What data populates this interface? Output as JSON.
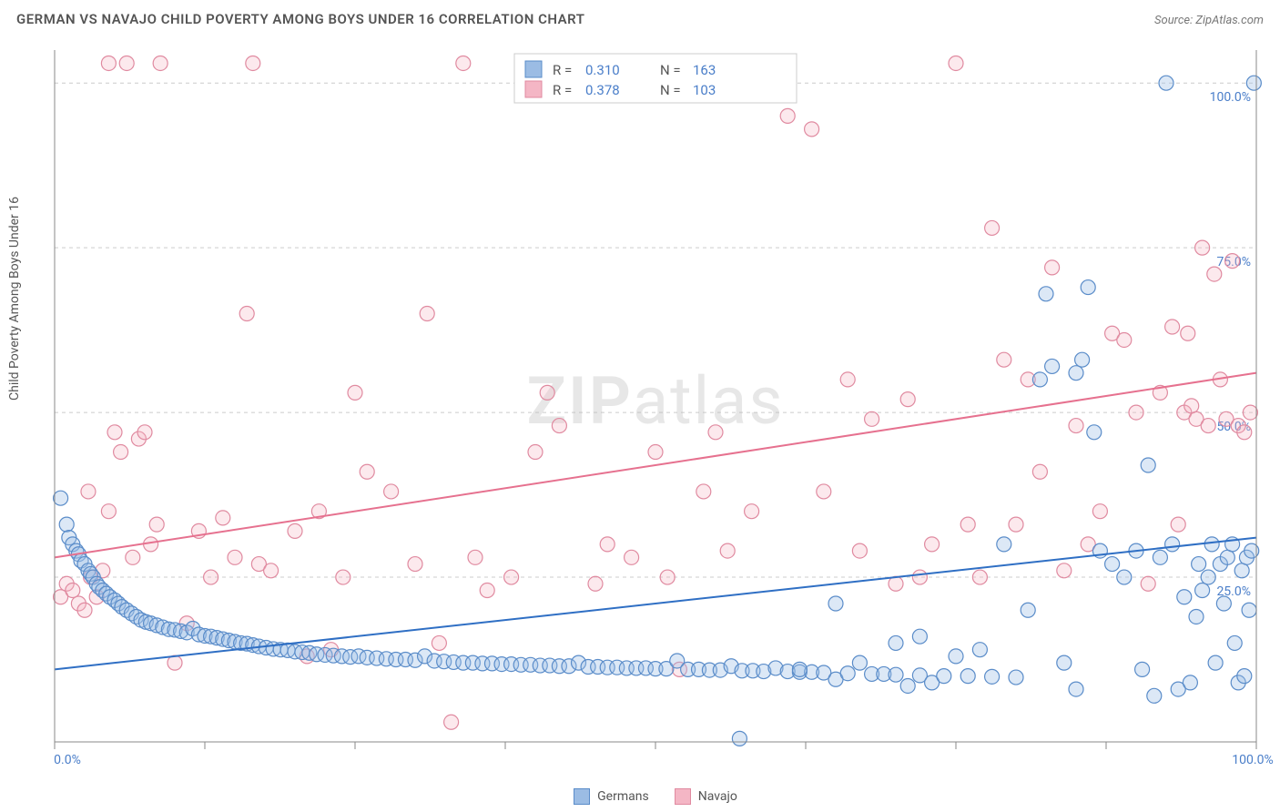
{
  "title": "GERMAN VS NAVAJO CHILD POVERTY AMONG BOYS UNDER 16 CORRELATION CHART",
  "source": "Source: ZipAtlas.com",
  "y_axis_title": "Child Poverty Among Boys Under 16",
  "watermark_a": "ZIP",
  "watermark_b": "atlas",
  "chart": {
    "type": "scatter",
    "xlim": [
      0,
      100
    ],
    "ylim": [
      0,
      105
    ],
    "y_ticks": [
      25,
      50,
      75,
      100
    ],
    "y_tick_labels": [
      "25.0%",
      "50.0%",
      "75.0%",
      "100.0%"
    ],
    "x_tick_positions": [
      0,
      12.5,
      25,
      37.5,
      50,
      62.5,
      75,
      87.5,
      100
    ],
    "x_tick_labels": {
      "0": "0.0%",
      "100": "100.0%"
    },
    "grid_color": "#cccccc",
    "axis_color": "#888888",
    "background_color": "#ffffff",
    "marker_radius": 8,
    "series_a": {
      "name": "Germans",
      "color_fill": "#9bbce4",
      "color_stroke": "#5a8cc9",
      "R": "0.310",
      "N": "163",
      "trend": {
        "x1": 0,
        "y1": 11,
        "x2": 100,
        "y2": 31,
        "color": "#2f6fc4"
      },
      "points": [
        [
          0.5,
          37
        ],
        [
          1,
          33
        ],
        [
          1.2,
          31
        ],
        [
          1.5,
          30
        ],
        [
          1.8,
          29
        ],
        [
          2,
          28.5
        ],
        [
          2.2,
          27.5
        ],
        [
          2.5,
          27
        ],
        [
          2.8,
          26
        ],
        [
          3,
          25.5
        ],
        [
          3.2,
          25
        ],
        [
          3.5,
          24
        ],
        [
          3.7,
          23.5
        ],
        [
          4,
          23
        ],
        [
          4.3,
          22.5
        ],
        [
          4.6,
          22
        ],
        [
          5,
          21.5
        ],
        [
          5.3,
          21
        ],
        [
          5.6,
          20.5
        ],
        [
          6,
          20
        ],
        [
          6.4,
          19.5
        ],
        [
          6.8,
          19
        ],
        [
          7.2,
          18.5
        ],
        [
          7.6,
          18.2
        ],
        [
          8,
          18
        ],
        [
          8.5,
          17.7
        ],
        [
          9,
          17.4
        ],
        [
          9.5,
          17.1
        ],
        [
          10,
          17
        ],
        [
          10.5,
          16.8
        ],
        [
          11,
          16.6
        ],
        [
          11.5,
          17.2
        ],
        [
          12,
          16.3
        ],
        [
          12.5,
          16.1
        ],
        [
          13,
          16
        ],
        [
          13.5,
          15.8
        ],
        [
          14,
          15.6
        ],
        [
          14.5,
          15.4
        ],
        [
          15,
          15.2
        ],
        [
          15.5,
          15
        ],
        [
          16,
          14.9
        ],
        [
          16.5,
          14.7
        ],
        [
          17,
          14.5
        ],
        [
          17.6,
          14.3
        ],
        [
          18.2,
          14.1
        ],
        [
          18.8,
          14
        ],
        [
          19.4,
          13.9
        ],
        [
          20,
          13.7
        ],
        [
          20.6,
          13.6
        ],
        [
          21.2,
          13.5
        ],
        [
          21.8,
          13.3
        ],
        [
          22.5,
          13.2
        ],
        [
          23.2,
          13.1
        ],
        [
          23.9,
          13
        ],
        [
          24.6,
          12.9
        ],
        [
          25.3,
          13
        ],
        [
          26,
          12.8
        ],
        [
          26.8,
          12.7
        ],
        [
          27.6,
          12.6
        ],
        [
          28.4,
          12.5
        ],
        [
          29.2,
          12.5
        ],
        [
          30,
          12.4
        ],
        [
          30.8,
          13
        ],
        [
          31.6,
          12.3
        ],
        [
          32.4,
          12.2
        ],
        [
          33.2,
          12.1
        ],
        [
          34,
          12
        ],
        [
          34.8,
          12
        ],
        [
          35.6,
          11.9
        ],
        [
          36.4,
          11.9
        ],
        [
          37.2,
          11.8
        ],
        [
          38,
          11.8
        ],
        [
          38.8,
          11.7
        ],
        [
          39.6,
          11.7
        ],
        [
          40.4,
          11.6
        ],
        [
          41.2,
          11.6
        ],
        [
          42,
          11.5
        ],
        [
          42.8,
          11.5
        ],
        [
          43.6,
          12
        ],
        [
          44.4,
          11.4
        ],
        [
          45.2,
          11.4
        ],
        [
          46,
          11.3
        ],
        [
          46.8,
          11.3
        ],
        [
          47.6,
          11.2
        ],
        [
          48.4,
          11.2
        ],
        [
          49.2,
          11.2
        ],
        [
          50,
          11.1
        ],
        [
          50.9,
          11.1
        ],
        [
          51.8,
          12.3
        ],
        [
          52.7,
          11
        ],
        [
          53.6,
          11
        ],
        [
          54.5,
          10.9
        ],
        [
          55.4,
          10.9
        ],
        [
          56.3,
          11.5
        ],
        [
          57.2,
          10.8
        ],
        [
          58.1,
          10.8
        ],
        [
          59,
          10.7
        ],
        [
          60,
          11.2
        ],
        [
          61,
          10.7
        ],
        [
          62,
          10.6
        ],
        [
          63,
          10.6
        ],
        [
          64,
          10.5
        ],
        [
          65,
          9.5
        ],
        [
          66,
          10.4
        ],
        [
          67,
          12
        ],
        [
          68,
          10.3
        ],
        [
          69,
          10.3
        ],
        [
          70,
          10.2
        ],
        [
          71,
          8.5
        ],
        [
          72,
          10.1
        ],
        [
          73,
          9
        ],
        [
          74,
          10
        ],
        [
          75,
          13
        ],
        [
          76,
          10
        ],
        [
          77,
          14
        ],
        [
          78,
          9.9
        ],
        [
          79,
          30
        ],
        [
          80,
          9.8
        ],
        [
          81,
          20
        ],
        [
          82,
          55
        ],
        [
          83,
          57
        ],
        [
          82.5,
          68
        ],
        [
          84,
          12
        ],
        [
          85,
          56
        ],
        [
          85.5,
          58
        ],
        [
          86,
          69
        ],
        [
          86.5,
          47
        ],
        [
          87,
          29
        ],
        [
          88,
          27
        ],
        [
          89,
          25
        ],
        [
          90,
          29
        ],
        [
          90.5,
          11
        ],
        [
          91,
          42
        ],
        [
          91.5,
          7
        ],
        [
          92,
          28
        ],
        [
          92.5,
          100
        ],
        [
          93,
          30
        ],
        [
          93.5,
          8
        ],
        [
          94,
          22
        ],
        [
          94.5,
          9
        ],
        [
          95,
          19
        ],
        [
          95.2,
          27
        ],
        [
          95.5,
          23
        ],
        [
          96,
          25
        ],
        [
          96.3,
          30
        ],
        [
          96.6,
          12
        ],
        [
          97,
          27
        ],
        [
          97.3,
          21
        ],
        [
          97.6,
          28
        ],
        [
          98,
          30
        ],
        [
          98.2,
          15
        ],
        [
          98.5,
          9
        ],
        [
          98.8,
          26
        ],
        [
          99,
          10
        ],
        [
          99.2,
          28
        ],
        [
          99.4,
          20
        ],
        [
          99.6,
          29
        ],
        [
          99.8,
          100
        ],
        [
          57,
          0.5
        ],
        [
          65,
          21
        ],
        [
          62,
          11
        ],
        [
          70,
          15
        ],
        [
          72,
          16
        ],
        [
          85,
          8
        ]
      ]
    },
    "series_b": {
      "name": "Navajo",
      "color_fill": "#f4b6c5",
      "color_stroke": "#e08aa0",
      "R": "0.378",
      "N": "103",
      "trend": {
        "x1": 0,
        "y1": 28,
        "x2": 100,
        "y2": 56,
        "color": "#e6718f"
      },
      "points": [
        [
          0.5,
          22
        ],
        [
          1,
          24
        ],
        [
          1.5,
          23
        ],
        [
          2,
          21
        ],
        [
          2.5,
          20
        ],
        [
          2.8,
          38
        ],
        [
          3,
          25
        ],
        [
          3.5,
          22
        ],
        [
          4,
          26
        ],
        [
          4.5,
          35
        ],
        [
          5,
          47
        ],
        [
          5.5,
          44
        ],
        [
          6,
          103
        ],
        [
          6.5,
          28
        ],
        [
          7,
          46
        ],
        [
          7.5,
          47
        ],
        [
          8,
          30
        ],
        [
          8.5,
          33
        ],
        [
          8.8,
          103
        ],
        [
          10,
          12
        ],
        [
          11,
          18
        ],
        [
          12,
          32
        ],
        [
          13,
          25
        ],
        [
          14,
          34
        ],
        [
          15,
          28
        ],
        [
          16,
          65
        ],
        [
          16.5,
          103
        ],
        [
          17,
          27
        ],
        [
          18,
          26
        ],
        [
          20,
          32
        ],
        [
          21,
          13
        ],
        [
          22,
          35
        ],
        [
          23,
          14
        ],
        [
          24,
          25
        ],
        [
          25,
          53
        ],
        [
          26,
          41
        ],
        [
          28,
          38
        ],
        [
          30,
          27
        ],
        [
          31,
          65
        ],
        [
          32,
          15
        ],
        [
          33,
          3
        ],
        [
          34,
          103
        ],
        [
          35,
          28
        ],
        [
          36,
          23
        ],
        [
          38,
          25
        ],
        [
          40,
          44
        ],
        [
          41,
          53
        ],
        [
          42,
          48
        ],
        [
          45,
          24
        ],
        [
          46,
          30
        ],
        [
          48,
          28
        ],
        [
          50,
          44
        ],
        [
          51,
          25
        ],
        [
          52,
          11
        ],
        [
          54,
          38
        ],
        [
          55,
          47
        ],
        [
          56,
          29
        ],
        [
          58,
          35
        ],
        [
          60,
          103
        ],
        [
          61,
          95
        ],
        [
          63,
          93
        ],
        [
          64,
          38
        ],
        [
          66,
          55
        ],
        [
          67,
          29
        ],
        [
          68,
          49
        ],
        [
          70,
          24
        ],
        [
          71,
          52
        ],
        [
          72,
          25
        ],
        [
          73,
          30
        ],
        [
          75,
          103
        ],
        [
          76,
          33
        ],
        [
          77,
          25
        ],
        [
          78,
          78
        ],
        [
          79,
          58
        ],
        [
          80,
          33
        ],
        [
          81,
          55
        ],
        [
          82,
          41
        ],
        [
          83,
          72
        ],
        [
          84,
          26
        ],
        [
          85,
          48
        ],
        [
          86,
          30
        ],
        [
          87,
          35
        ],
        [
          88,
          62
        ],
        [
          89,
          61
        ],
        [
          90,
          50
        ],
        [
          91,
          24
        ],
        [
          92,
          53
        ],
        [
          93,
          63
        ],
        [
          93.5,
          33
        ],
        [
          94,
          50
        ],
        [
          94.3,
          62
        ],
        [
          94.6,
          51
        ],
        [
          95,
          49
        ],
        [
          95.5,
          75
        ],
        [
          96,
          48
        ],
        [
          96.5,
          71
        ],
        [
          97,
          55
        ],
        [
          97.5,
          49
        ],
        [
          98,
          73
        ],
        [
          98.5,
          48
        ],
        [
          99,
          47
        ],
        [
          99.5,
          50
        ],
        [
          4.5,
          103
        ]
      ]
    }
  },
  "stats_box": {
    "labels": {
      "R": "R =",
      "N": "N ="
    }
  },
  "legend": [
    {
      "name": "Germans",
      "fill": "#9bbce4",
      "stroke": "#5a8cc9"
    },
    {
      "name": "Navajo",
      "fill": "#f4b6c5",
      "stroke": "#e08aa0"
    }
  ]
}
